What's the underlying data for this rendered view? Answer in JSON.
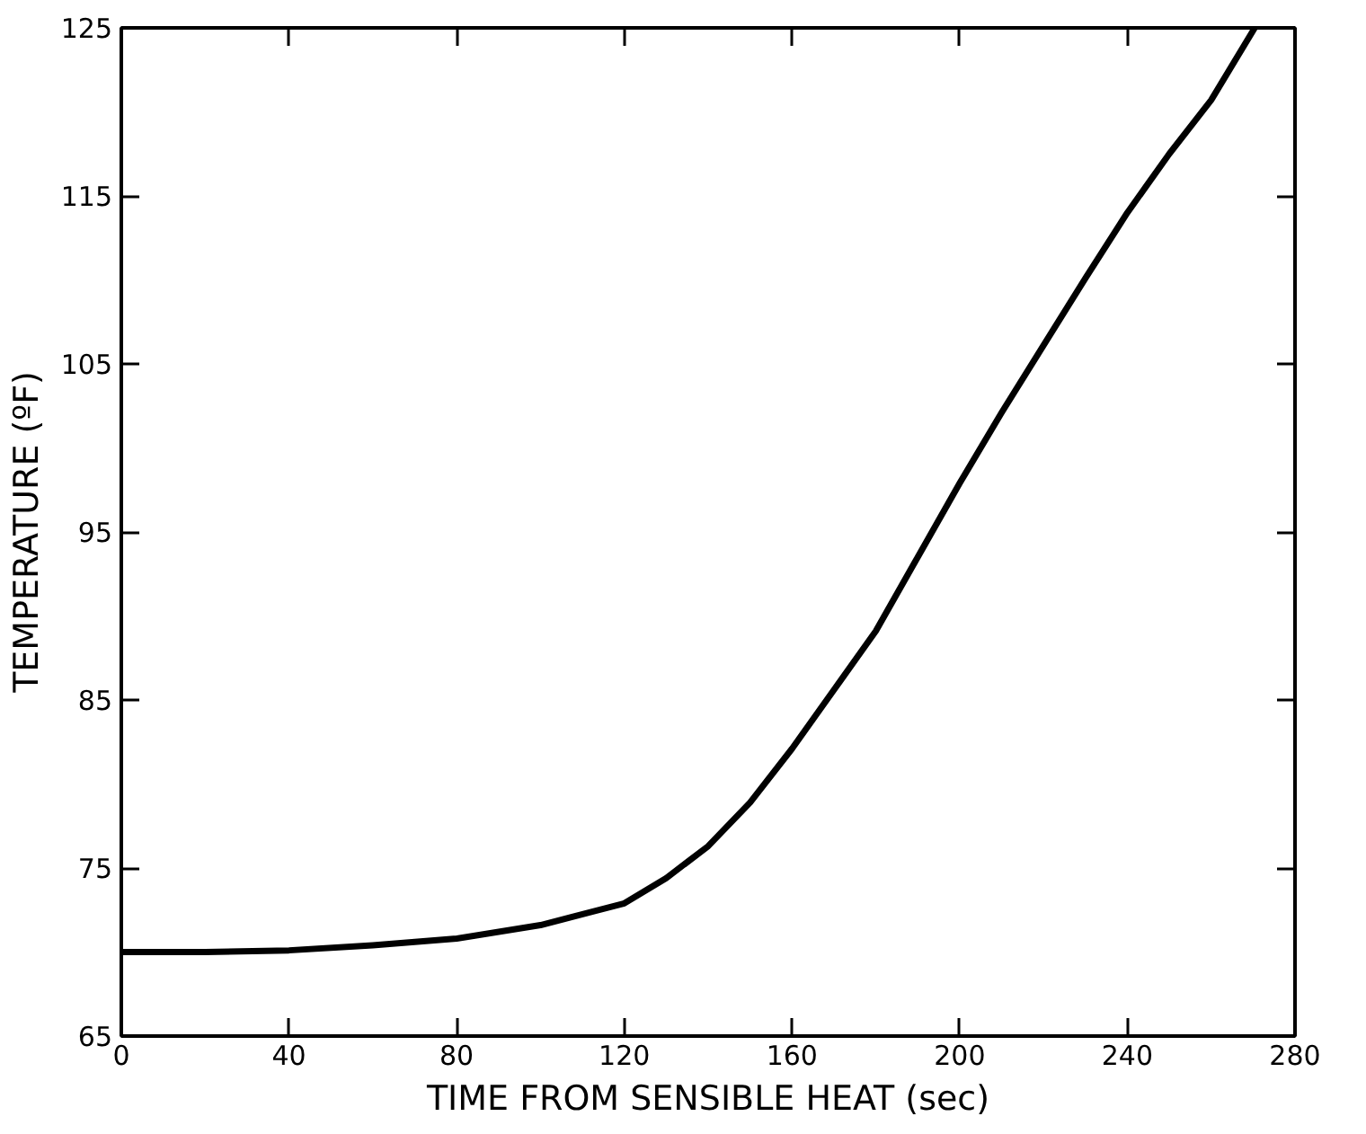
{
  "chart_data": {
    "type": "line",
    "xlabel": "TIME FROM SENSIBLE HEAT (sec)",
    "ylabel": "TEMPERATURE (ºF)",
    "x": [
      0,
      20,
      40,
      60,
      80,
      100,
      120,
      130,
      140,
      150,
      160,
      170,
      180,
      190,
      200,
      210,
      220,
      230,
      240,
      250,
      260,
      270.4
    ],
    "series": [
      {
        "color": "#000000",
        "values": [
          70,
          70,
          70.1,
          70.4,
          70.8,
          71.6,
          72.9,
          74.4,
          76.3,
          78.9,
          82.1,
          85.6,
          89.1,
          93.5,
          97.9,
          102.1,
          106.1,
          110.1,
          114,
          117.5,
          120.7,
          125
        ]
      }
    ],
    "xlim": [
      0,
      280
    ],
    "ylim": [
      65,
      125
    ],
    "xticks": [
      0,
      40,
      80,
      120,
      160,
      200,
      240,
      280
    ],
    "yticks": [
      65,
      75,
      85,
      95,
      105,
      115,
      125
    ],
    "line_style": "solid"
  }
}
